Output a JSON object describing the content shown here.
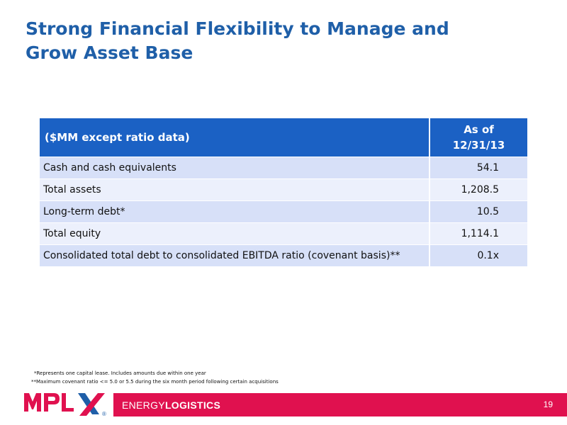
{
  "title": {
    "line1": "Strong Financial Flexibility to Manage and",
    "line2": "Grow Asset Base"
  },
  "table": {
    "header_label": "($MM except ratio data)",
    "header_date_line1": "As of",
    "header_date_line2": "12/31/13",
    "rows": [
      {
        "label": "Cash and cash equivalents",
        "value": "54.1"
      },
      {
        "label": "Total assets",
        "value": "1,208.5"
      },
      {
        "label": "Long-term debt*",
        "value": "10.5"
      },
      {
        "label": "Total equity",
        "value": "1,114.1"
      },
      {
        "label": "Consolidated total debt to consolidated EBITDA ratio (covenant basis)**",
        "value": "0.1x"
      }
    ]
  },
  "footnotes": {
    "note1": "*Represents one capital lease. Includes amounts due within one year",
    "note2": "**Maximum covenant ratio <= 5.0 or 5.5 during the six month period following certain acquisitions"
  },
  "footer": {
    "logo_text": "MPLX",
    "registered_mark": "®",
    "brand_part1": "ENERGY",
    "brand_part2": "LOGISTICS",
    "page_number": "19"
  },
  "colors": {
    "title": "#1f5fa8",
    "header_bg": "#1b61c4",
    "row_odd": "#d7e0f8",
    "row_even": "#ecf0fc",
    "footer_bar": "#e0114f",
    "logo_red": "#e0114f",
    "logo_blue": "#1f5fa8"
  }
}
